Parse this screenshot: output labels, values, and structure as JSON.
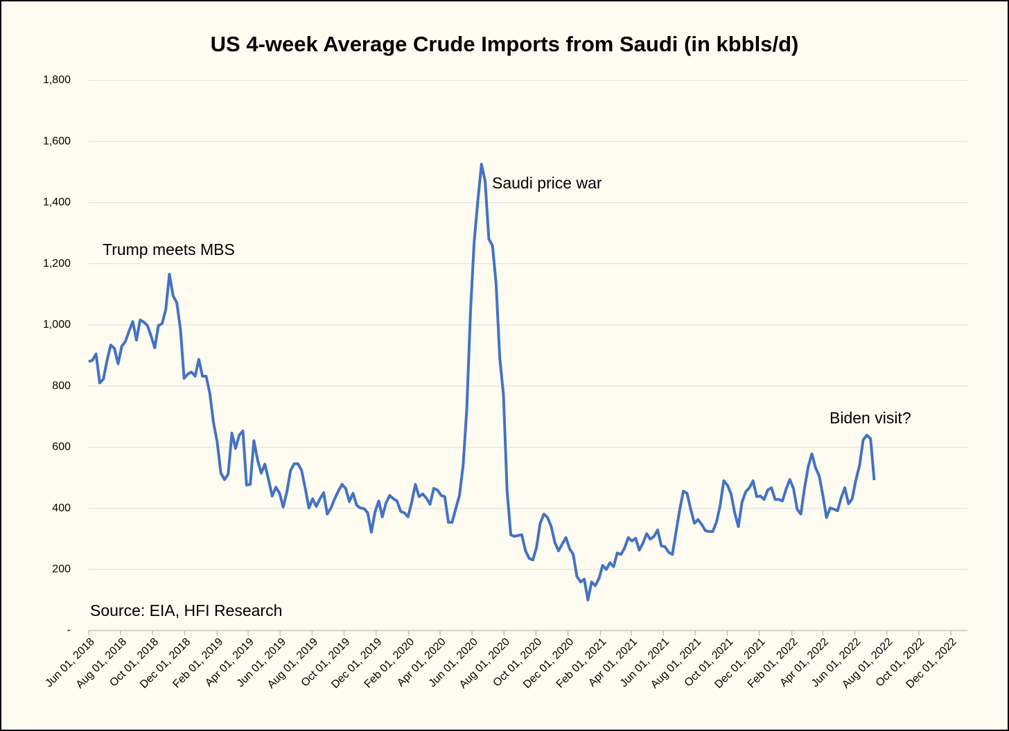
{
  "chart_data": {
    "type": "line",
    "title": "US 4-week Average Crude Imports from Saudi (in kbbls/d)",
    "annotations": [
      "Trump meets MBS",
      "Saudi price war",
      "Biden visit?",
      "Source: EIA, HFI Research"
    ],
    "color": "#4472c4",
    "grid": true,
    "ylim": [
      0,
      1800
    ],
    "yticks": [
      {
        "value": 0,
        "label": "-"
      },
      {
        "value": 200,
        "label": "200"
      },
      {
        "value": 400,
        "label": "400"
      },
      {
        "value": 600,
        "label": "600"
      },
      {
        "value": 800,
        "label": "800"
      },
      {
        "value": 1000,
        "label": "1,000"
      },
      {
        "value": 1200,
        "label": "1,200"
      },
      {
        "value": 1400,
        "label": "1,400"
      },
      {
        "value": 1600,
        "label": "1,600"
      },
      {
        "value": 1800,
        "label": "1,800"
      }
    ],
    "xlim": [
      "2018-06-01",
      "2022-12-01"
    ],
    "xticks": [
      {
        "value": "2018-06-01",
        "label": "Jun 01, 2018"
      },
      {
        "value": "2018-08-01",
        "label": "Aug 01, 2018"
      },
      {
        "value": "2018-10-01",
        "label": "Oct 01, 2018"
      },
      {
        "value": "2018-12-01",
        "label": "Dec 01, 2018"
      },
      {
        "value": "2019-02-01",
        "label": "Feb 01, 2019"
      },
      {
        "value": "2019-04-01",
        "label": "Apr 01, 2019"
      },
      {
        "value": "2019-06-01",
        "label": "Jun 01, 2019"
      },
      {
        "value": "2019-08-01",
        "label": "Aug 01, 2019"
      },
      {
        "value": "2019-10-01",
        "label": "Oct 01, 2019"
      },
      {
        "value": "2019-12-01",
        "label": "Dec 01, 2019"
      },
      {
        "value": "2020-02-01",
        "label": "Feb 01, 2020"
      },
      {
        "value": "2020-04-01",
        "label": "Apr 01, 2020"
      },
      {
        "value": "2020-06-01",
        "label": "Jun 01, 2020"
      },
      {
        "value": "2020-08-01",
        "label": "Aug 01, 2020"
      },
      {
        "value": "2020-10-01",
        "label": "Oct 01, 2020"
      },
      {
        "value": "2020-12-01",
        "label": "Dec 01, 2020"
      },
      {
        "value": "2021-02-01",
        "label": "Feb 01, 2021"
      },
      {
        "value": "2021-04-01",
        "label": "Apr 01, 2021"
      },
      {
        "value": "2021-06-01",
        "label": "Jun 01, 2021"
      },
      {
        "value": "2021-08-01",
        "label": "Aug 01, 2021"
      },
      {
        "value": "2021-10-01",
        "label": "Oct 01, 2021"
      },
      {
        "value": "2021-12-01",
        "label": "Dec 01, 2021"
      },
      {
        "value": "2022-02-01",
        "label": "Feb 01, 2022"
      },
      {
        "value": "2022-04-01",
        "label": "Apr 01, 2022"
      },
      {
        "value": "2022-06-01",
        "label": "Jun 01, 2022"
      },
      {
        "value": "2022-08-01",
        "label": "Aug 01, 2022"
      },
      {
        "value": "2022-10-01",
        "label": "Oct 01, 2022"
      },
      {
        "value": "2022-12-01",
        "label": "Dec 01, 2022"
      }
    ],
    "x": [
      "2018-06-01",
      "2018-06-08",
      "2018-06-15",
      "2018-06-22",
      "2018-06-29",
      "2018-07-06",
      "2018-07-13",
      "2018-07-20",
      "2018-07-27",
      "2018-08-03",
      "2018-08-10",
      "2018-08-17",
      "2018-08-24",
      "2018-08-31",
      "2018-09-07",
      "2018-09-14",
      "2018-09-21",
      "2018-09-28",
      "2018-10-05",
      "2018-10-12",
      "2018-10-19",
      "2018-10-26",
      "2018-11-02",
      "2018-11-09",
      "2018-11-16",
      "2018-11-23",
      "2018-11-30",
      "2018-12-07",
      "2018-12-14",
      "2018-12-21",
      "2018-12-28",
      "2019-01-04",
      "2019-01-11",
      "2019-01-18",
      "2019-01-25",
      "2019-02-01",
      "2019-02-08",
      "2019-02-15",
      "2019-02-22",
      "2019-03-01",
      "2019-03-08",
      "2019-03-15",
      "2019-03-22",
      "2019-03-29",
      "2019-04-05",
      "2019-04-12",
      "2019-04-19",
      "2019-04-26",
      "2019-05-03",
      "2019-05-10",
      "2019-05-17",
      "2019-05-24",
      "2019-05-31",
      "2019-06-07",
      "2019-06-14",
      "2019-06-21",
      "2019-06-28",
      "2019-07-05",
      "2019-07-12",
      "2019-07-19",
      "2019-07-26",
      "2019-08-02",
      "2019-08-09",
      "2019-08-16",
      "2019-08-23",
      "2019-08-30",
      "2019-09-06",
      "2019-09-13",
      "2019-09-20",
      "2019-09-27",
      "2019-10-04",
      "2019-10-11",
      "2019-10-18",
      "2019-10-25",
      "2019-11-01",
      "2019-11-08",
      "2019-11-15",
      "2019-11-22",
      "2019-11-29",
      "2019-12-06",
      "2019-12-13",
      "2019-12-20",
      "2019-12-27",
      "2020-01-03",
      "2020-01-10",
      "2020-01-17",
      "2020-01-24",
      "2020-01-31",
      "2020-02-07",
      "2020-02-14",
      "2020-02-21",
      "2020-02-28",
      "2020-03-06",
      "2020-03-13",
      "2020-03-20",
      "2020-03-27",
      "2020-04-03",
      "2020-04-10",
      "2020-04-17",
      "2020-04-24",
      "2020-05-01",
      "2020-05-08",
      "2020-05-15",
      "2020-05-22",
      "2020-05-29",
      "2020-06-05",
      "2020-06-12",
      "2020-06-19",
      "2020-06-26",
      "2020-07-03",
      "2020-07-10",
      "2020-07-17",
      "2020-07-24",
      "2020-07-31",
      "2020-08-07",
      "2020-08-14",
      "2020-08-21",
      "2020-08-28",
      "2020-09-04",
      "2020-09-11",
      "2020-09-18",
      "2020-09-25",
      "2020-10-02",
      "2020-10-09",
      "2020-10-16",
      "2020-10-23",
      "2020-10-30",
      "2020-11-06",
      "2020-11-13",
      "2020-11-20",
      "2020-11-27",
      "2020-12-04",
      "2020-12-11",
      "2020-12-18",
      "2020-12-25",
      "2021-01-01",
      "2021-01-08",
      "2021-01-15",
      "2021-01-22",
      "2021-01-29",
      "2021-02-05",
      "2021-02-12",
      "2021-02-19",
      "2021-02-26",
      "2021-03-05",
      "2021-03-12",
      "2021-03-19",
      "2021-03-26",
      "2021-04-02",
      "2021-04-09",
      "2021-04-16",
      "2021-04-23",
      "2021-04-30",
      "2021-05-07",
      "2021-05-14",
      "2021-05-21",
      "2021-05-28",
      "2021-06-04",
      "2021-06-11",
      "2021-06-18",
      "2021-06-25",
      "2021-07-02",
      "2021-07-09",
      "2021-07-16",
      "2021-07-23",
      "2021-07-30",
      "2021-08-06",
      "2021-08-13",
      "2021-08-20",
      "2021-08-27",
      "2021-09-03",
      "2021-09-10",
      "2021-09-17",
      "2021-09-24",
      "2021-10-01",
      "2021-10-08",
      "2021-10-15",
      "2021-10-22",
      "2021-10-29",
      "2021-11-05",
      "2021-11-12",
      "2021-11-19",
      "2021-11-26",
      "2021-12-03",
      "2021-12-10",
      "2021-12-17",
      "2021-12-24",
      "2021-12-31",
      "2022-01-07",
      "2022-01-14",
      "2022-01-21",
      "2022-01-28",
      "2022-02-04",
      "2022-02-11",
      "2022-02-18",
      "2022-02-25",
      "2022-03-04",
      "2022-03-11",
      "2022-03-18",
      "2022-03-25",
      "2022-04-01",
      "2022-04-08",
      "2022-04-15",
      "2022-04-22",
      "2022-04-29",
      "2022-05-06",
      "2022-05-13",
      "2022-05-20",
      "2022-05-27",
      "2022-06-03",
      "2022-06-10",
      "2022-06-17",
      "2022-06-24",
      "2022-07-01",
      "2022-07-08"
    ],
    "values": [
      880,
      884,
      905,
      810,
      823,
      884,
      934,
      923,
      873,
      930,
      946,
      980,
      1011,
      950,
      1016,
      1009,
      998,
      964,
      925,
      998,
      1004,
      1050,
      1166,
      1095,
      1073,
      986,
      825,
      839,
      846,
      832,
      887,
      832,
      832,
      776,
      680,
      617,
      515,
      494,
      512,
      646,
      596,
      639,
      653,
      476,
      478,
      621,
      558,
      515,
      544,
      494,
      440,
      469,
      449,
      404,
      454,
      524,
      546,
      546,
      524,
      465,
      401,
      431,
      406,
      431,
      451,
      381,
      401,
      431,
      456,
      478,
      465,
      422,
      449,
      410,
      401,
      399,
      385,
      322,
      388,
      424,
      372,
      417,
      442,
      431,
      424,
      390,
      385,
      372,
      420,
      478,
      438,
      447,
      433,
      413,
      465,
      460,
      442,
      438,
      354,
      354,
      399,
      442,
      540,
      726,
      1043,
      1270,
      1406,
      1526,
      1469,
      1281,
      1259,
      1134,
      891,
      771,
      454,
      313,
      308,
      311,
      313,
      261,
      236,
      231,
      272,
      351,
      381,
      370,
      340,
      288,
      261,
      283,
      304,
      268,
      249,
      177,
      159,
      168,
      100,
      159,
      147,
      170,
      213,
      200,
      222,
      209,
      254,
      249,
      270,
      304,
      293,
      302,
      263,
      286,
      317,
      299,
      308,
      329,
      277,
      274,
      256,
      249,
      322,
      395,
      456,
      449,
      397,
      351,
      363,
      347,
      327,
      324,
      324,
      354,
      408,
      490,
      476,
      447,
      385,
      340,
      420,
      454,
      467,
      490,
      438,
      440,
      429,
      460,
      467,
      429,
      429,
      424,
      463,
      494,
      465,
      397,
      381,
      465,
      535,
      578,
      533,
      506,
      442,
      370,
      401,
      397,
      392,
      435,
      467,
      415,
      431,
      492,
      540,
      624,
      639,
      628,
      492
    ]
  }
}
